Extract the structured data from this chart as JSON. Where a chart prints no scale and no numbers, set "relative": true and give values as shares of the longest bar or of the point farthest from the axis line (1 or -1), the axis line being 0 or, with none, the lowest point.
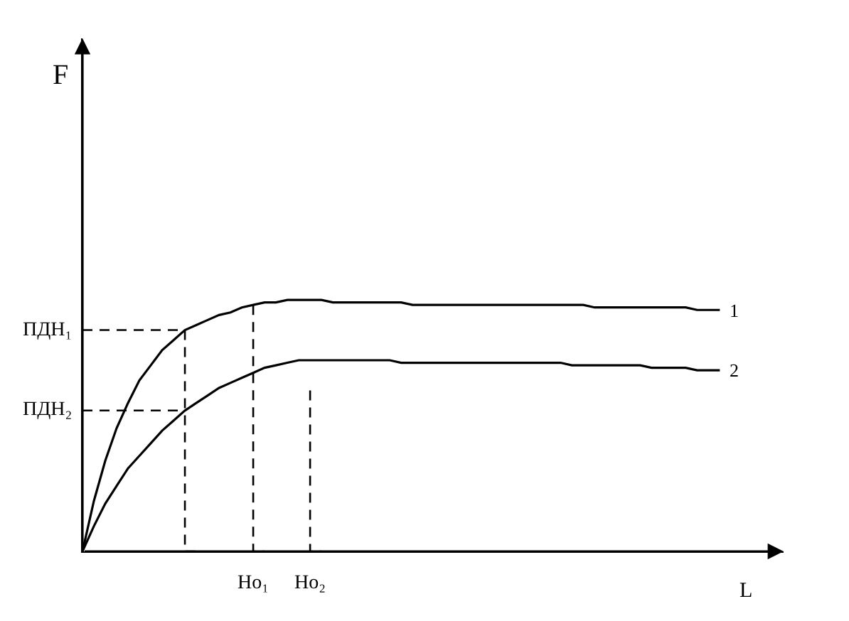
{
  "chart_data": {
    "type": "line",
    "relative": true,
    "xlabel": "L",
    "tick_labels": "x",
    "annotations": [
      "F"
    ],
    "categories": [
      null,
      null,
      null,
      null,
      null,
      null,
      null,
      null,
      null,
      null,
      null,
      null,
      null,
      null,
      null,
      "Но₁",
      null,
      null,
      null,
      null,
      "Но₂",
      null,
      null,
      null,
      null,
      null,
      null,
      null,
      null,
      null,
      null,
      null,
      null,
      null,
      null,
      null,
      null,
      null,
      null,
      null,
      null,
      null,
      null,
      null,
      null,
      null,
      null,
      null,
      null,
      null,
      null,
      null,
      null,
      null,
      null,
      null,
      null
    ],
    "series": [
      {
        "name": "1",
        "color": "#000000",
        "values": [
          0,
          0.2,
          0.36,
          0.49,
          0.59,
          0.68,
          0.74,
          0.8,
          0.84,
          0.88,
          0.9,
          0.92,
          0.94,
          0.95,
          0.97,
          0.98,
          0.99,
          0.99,
          1.0,
          1.0,
          1.0,
          1.0,
          0.99,
          0.99,
          0.99,
          0.99,
          0.99,
          0.99,
          0.99,
          0.98,
          0.98,
          0.98,
          0.98,
          0.98,
          0.98,
          0.98,
          0.98,
          0.98,
          0.98,
          0.98,
          0.98,
          0.98,
          0.98,
          0.98,
          0.98,
          0.97,
          0.97,
          0.97,
          0.97,
          0.97,
          0.97,
          0.97,
          0.97,
          0.97,
          0.96,
          0.96,
          0.96
        ]
      },
      {
        "name": "2",
        "color": "#000000",
        "values": [
          0,
          0.1,
          0.19,
          0.26,
          0.33,
          0.38,
          0.43,
          0.48,
          0.52,
          0.56,
          0.59,
          0.62,
          0.65,
          0.67,
          0.69,
          0.71,
          0.73,
          0.74,
          0.75,
          0.76,
          0.76,
          0.76,
          0.76,
          0.76,
          0.76,
          0.76,
          0.76,
          0.76,
          0.75,
          0.75,
          0.75,
          0.75,
          0.75,
          0.75,
          0.75,
          0.75,
          0.75,
          0.75,
          0.75,
          0.75,
          0.75,
          0.75,
          0.75,
          0.74,
          0.74,
          0.74,
          0.74,
          0.74,
          0.74,
          0.74,
          0.73,
          0.73,
          0.73,
          0.73,
          0.72,
          0.72,
          0.72
        ]
      },
      {
        "name": "ПДН₁",
        "type": "step",
        "color": "#000000",
        "line_style": "dashed",
        "values": [
          0.88,
          0.88,
          0.88,
          0.88,
          0.88,
          0.88,
          0.88,
          0.88,
          0.88,
          0.88,
          0,
          null,
          null,
          null,
          null,
          null,
          null,
          null,
          null,
          null,
          null,
          null,
          null,
          null,
          null,
          null,
          null,
          null,
          null,
          null,
          null,
          null,
          null,
          null,
          null,
          null,
          null,
          null,
          null,
          null,
          null,
          null,
          null,
          null,
          null,
          null,
          null,
          null,
          null,
          null,
          null,
          null,
          null,
          null,
          null,
          null,
          null
        ]
      },
      {
        "name": "ПДН₂",
        "type": "line",
        "color": "#000000",
        "line_style": "dashed",
        "values": [
          0.56,
          0.56,
          0.56,
          0.56,
          0.56,
          0.56,
          0.56,
          0.56,
          0.56,
          0.56,
          null,
          null,
          null,
          null,
          null,
          null,
          null,
          null,
          null,
          null,
          null,
          null,
          null,
          null,
          null,
          null,
          null,
          null,
          null,
          null,
          null,
          null,
          null,
          null,
          null,
          null,
          null,
          null,
          null,
          null,
          null,
          null,
          null,
          null,
          null,
          null,
          null,
          null,
          null,
          null,
          null,
          null,
          null,
          null,
          null,
          null,
          null
        ]
      },
      {
        "type": "step",
        "color": "#000000",
        "line_style": "dashed",
        "values": [
          null,
          null,
          null,
          null,
          null,
          null,
          null,
          null,
          null,
          null,
          null,
          null,
          null,
          null,
          null,
          0.98,
          0,
          null,
          null,
          null,
          null,
          null,
          null,
          null,
          null,
          null,
          null,
          null,
          null,
          null,
          null,
          null,
          null,
          null,
          null,
          null,
          null,
          null,
          null,
          null,
          null,
          null,
          null,
          null,
          null,
          null,
          null,
          null,
          null,
          null,
          null,
          null,
          null,
          null,
          null,
          null,
          null
        ]
      },
      {
        "type": "step",
        "color": "#000000",
        "line_style": "dashed",
        "values": [
          null,
          null,
          null,
          null,
          null,
          null,
          null,
          null,
          null,
          null,
          null,
          null,
          null,
          null,
          null,
          null,
          null,
          null,
          null,
          null,
          0.64,
          0,
          null,
          null,
          null,
          null,
          null,
          null,
          null,
          null,
          null,
          null,
          null,
          null,
          null,
          null,
          null,
          null,
          null,
          null,
          null,
          null,
          null,
          null,
          null,
          null,
          null,
          null,
          null,
          null,
          null,
          null,
          null,
          null,
          null,
          null,
          null
        ]
      }
    ]
  }
}
